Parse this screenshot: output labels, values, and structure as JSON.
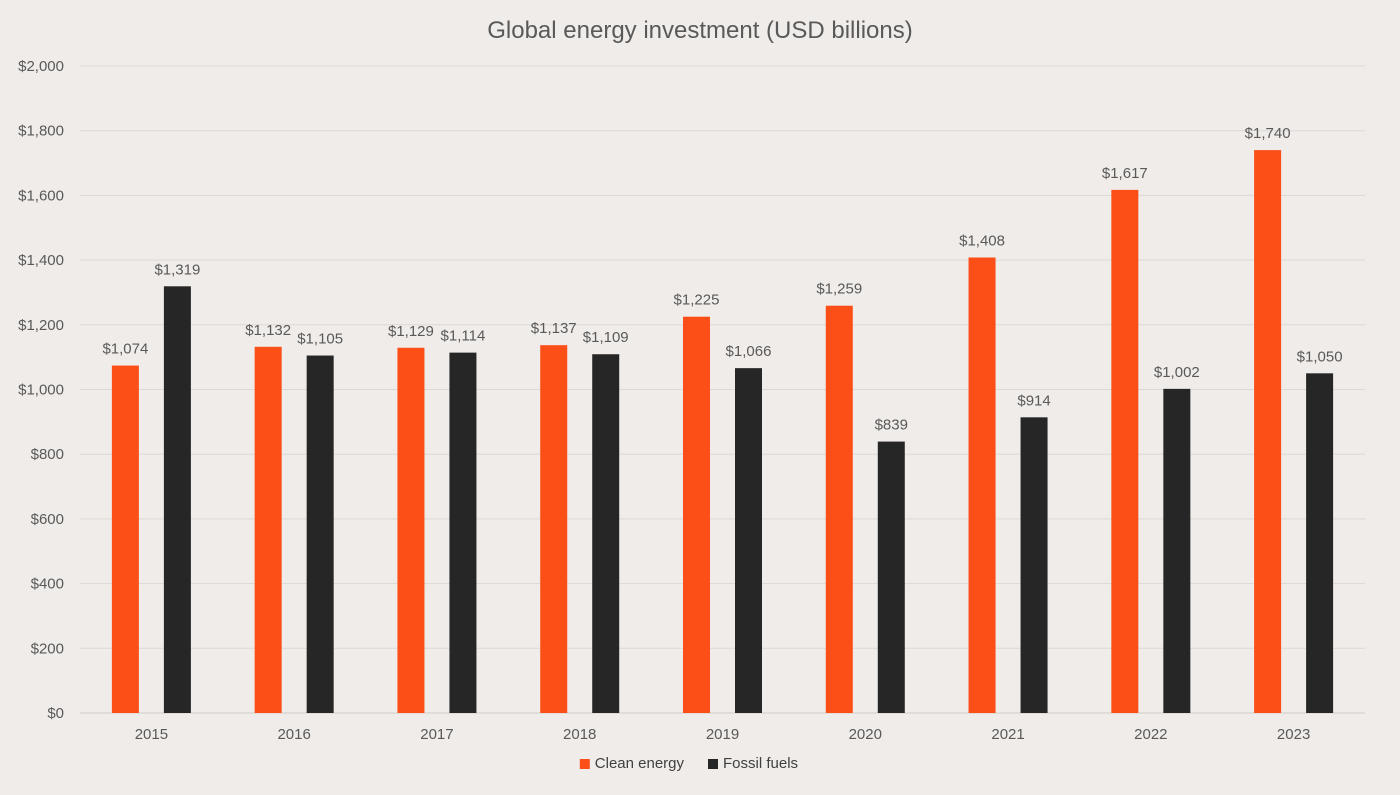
{
  "chart_data": {
    "type": "bar",
    "title": "Global energy investment (USD billions)",
    "xlabel": "",
    "ylabel": "",
    "ylim": [
      0,
      2000
    ],
    "ytick_values": [
      0,
      200,
      400,
      600,
      800,
      1000,
      1200,
      1400,
      1600,
      1800,
      2000
    ],
    "ytick_labels": [
      "$0",
      "$200",
      "$400",
      "$600",
      "$800",
      "$1,000",
      "$1,200",
      "$1,400",
      "$1,600",
      "$1,800",
      "$2,000"
    ],
    "grid": true,
    "legend_position": "bottom",
    "categories": [
      "2015",
      "2016",
      "2017",
      "2018",
      "2019",
      "2020",
      "2021",
      "2022",
      "2023"
    ],
    "series": [
      {
        "name": "Clean energy",
        "color": "#fc4e17",
        "values": [
          1074,
          1132,
          1129,
          1137,
          1225,
          1259,
          1408,
          1617,
          1740
        ],
        "labels": [
          "$1,074",
          "$1,132",
          "$1,129",
          "$1,137",
          "$1,225",
          "$1,259",
          "$1,408",
          "$1,617",
          "$1,740"
        ]
      },
      {
        "name": "Fossil fuels",
        "color": "#262626",
        "values": [
          1319,
          1105,
          1114,
          1109,
          1066,
          839,
          914,
          1002,
          1050
        ],
        "labels": [
          "$1,319",
          "$1,105",
          "$1,114",
          "$1,109",
          "$1,066",
          "$839",
          "$914",
          "$1,002",
          "$1,050"
        ]
      }
    ]
  }
}
